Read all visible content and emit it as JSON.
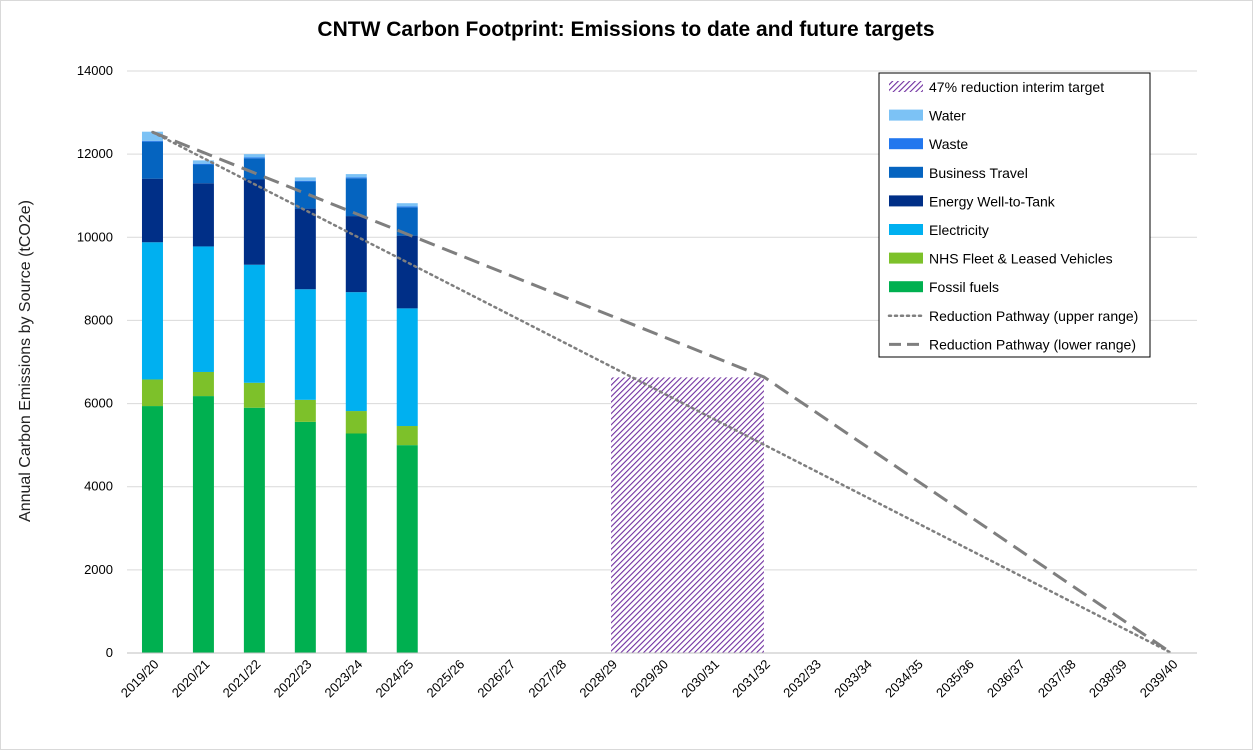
{
  "chart_data": {
    "type": "bar",
    "stacked": true,
    "title": "CNTW Carbon Footprint: Emissions to date and future targets",
    "ylabel": "Annual Carbon Emissions by Source (tCO2e)",
    "xlabel": "",
    "ylim": [
      0,
      14000
    ],
    "yticks": [
      0,
      2000,
      4000,
      6000,
      8000,
      10000,
      12000,
      14000
    ],
    "grid": true,
    "legend_position": "top-right",
    "categories": [
      "2019/20",
      "2020/21",
      "2021/22",
      "2022/23",
      "2023/24",
      "2024/25",
      "2025/26",
      "2026/27",
      "2027/28",
      "2028/29",
      "2029/30",
      "2030/31",
      "2031/32",
      "2032/33",
      "2033/34",
      "2034/35",
      "2035/36",
      "2036/37",
      "2037/38",
      "2038/39",
      "2039/40"
    ],
    "series": [
      {
        "name": "Fossil fuels",
        "color": "#00b050",
        "values": [
          5940,
          6180,
          5900,
          5560,
          5280,
          5000,
          null,
          null,
          null,
          null,
          null,
          null,
          null,
          null,
          null,
          null,
          null,
          null,
          null,
          null,
          null
        ]
      },
      {
        "name": "NHS Fleet & Leased Vehicles",
        "color": "#7dc12a",
        "values": [
          640,
          580,
          600,
          530,
          540,
          460,
          null,
          null,
          null,
          null,
          null,
          null,
          null,
          null,
          null,
          null,
          null,
          null,
          null,
          null,
          null
        ]
      },
      {
        "name": "Electricity",
        "color": "#00b0f0",
        "values": [
          3300,
          3020,
          2840,
          2660,
          2860,
          2830,
          null,
          null,
          null,
          null,
          null,
          null,
          null,
          null,
          null,
          null,
          null,
          null,
          null,
          null,
          null
        ]
      },
      {
        "name": "Energy Well-to-Tank",
        "color": "#002f87",
        "values": [
          1530,
          1520,
          2050,
          1940,
          1830,
          1750,
          null,
          null,
          null,
          null,
          null,
          null,
          null,
          null,
          null,
          null,
          null,
          null,
          null,
          null,
          null
        ]
      },
      {
        "name": "Business Travel",
        "color": "#0564c0",
        "values": [
          890,
          450,
          510,
          650,
          910,
          680,
          null,
          null,
          null,
          null,
          null,
          null,
          null,
          null,
          null,
          null,
          null,
          null,
          null,
          null,
          null
        ]
      },
      {
        "name": "Waste",
        "color": "#2277ee",
        "values": [
          20,
          20,
          20,
          20,
          20,
          20,
          null,
          null,
          null,
          null,
          null,
          null,
          null,
          null,
          null,
          null,
          null,
          null,
          null,
          null,
          null
        ]
      },
      {
        "name": "Water",
        "color": "#7cc2f5",
        "values": [
          220,
          80,
          80,
          80,
          80,
          80,
          null,
          null,
          null,
          null,
          null,
          null,
          null,
          null,
          null,
          null,
          null,
          null,
          null,
          null,
          null
        ]
      }
    ],
    "target_area": {
      "name": "47% reduction interim target",
      "color": "#7030a0",
      "from": "2028/29",
      "to": "2031/32",
      "value": 6630
    },
    "lines": [
      {
        "name": "Reduction Pathway (upper range)",
        "style": "dotted",
        "color": "#7f7f7f",
        "points": [
          [
            "2019/20",
            12530
          ],
          [
            "2039/40",
            0
          ]
        ]
      },
      {
        "name": "Reduction Pathway (lower range)",
        "style": "dashed",
        "color": "#7f7f7f",
        "points": [
          [
            "2019/20",
            12530
          ],
          [
            "2031/32",
            6640
          ],
          [
            "2039/40",
            0
          ]
        ]
      }
    ],
    "legend_order": [
      "47% reduction interim target",
      "Water",
      "Waste",
      "Business Travel",
      "Energy Well-to-Tank",
      "Electricity",
      "NHS Fleet & Leased Vehicles",
      "Fossil fuels",
      "Reduction Pathway (upper range)",
      "Reduction Pathway (lower range)"
    ]
  }
}
